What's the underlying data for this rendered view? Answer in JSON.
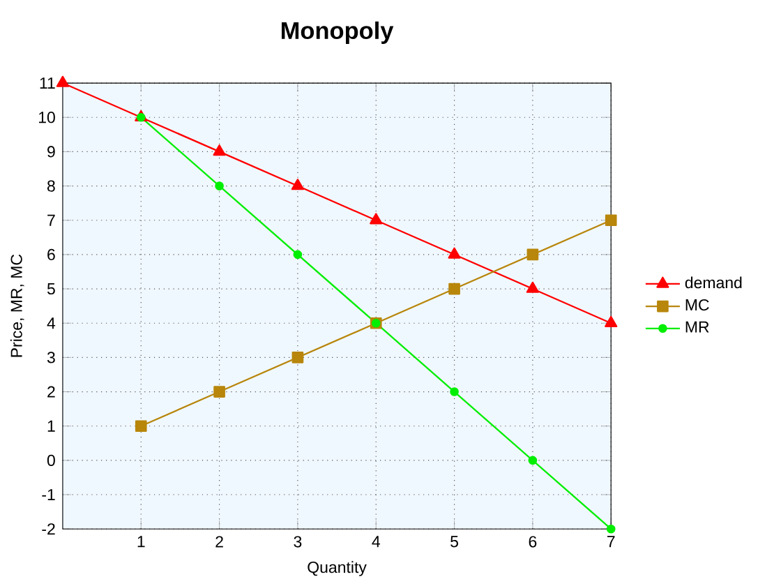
{
  "chart_data": {
    "type": "line",
    "title": "Monopoly",
    "xlabel": "Quantity",
    "ylabel": "Price, MR, MC",
    "series": [
      {
        "name": "demand",
        "color": "#ff0000",
        "marker": "triangle",
        "x": [
          0,
          1,
          2,
          3,
          4,
          5,
          6,
          7
        ],
        "values": [
          11,
          10,
          9,
          8,
          7,
          6,
          5,
          4
        ]
      },
      {
        "name": "MC",
        "color": "#b8860b",
        "marker": "square",
        "x": [
          1,
          2,
          3,
          4,
          5,
          6,
          7
        ],
        "values": [
          1,
          2,
          3,
          4,
          5,
          6,
          7
        ]
      },
      {
        "name": "MR",
        "color": "#00ee00",
        "marker": "circle",
        "x": [
          1,
          2,
          3,
          4,
          5,
          6,
          7
        ],
        "values": [
          10,
          8,
          6,
          4,
          2,
          0,
          -2
        ]
      }
    ],
    "xlim": [
      0,
      7
    ],
    "xticks": [
      1,
      2,
      3,
      4,
      5,
      6,
      7
    ],
    "ylim": [
      -2,
      11
    ],
    "yticks": [
      -2,
      -1,
      0,
      1,
      2,
      3,
      4,
      5,
      6,
      7,
      8,
      9,
      10,
      11
    ],
    "grid": true,
    "legend": "right"
  }
}
